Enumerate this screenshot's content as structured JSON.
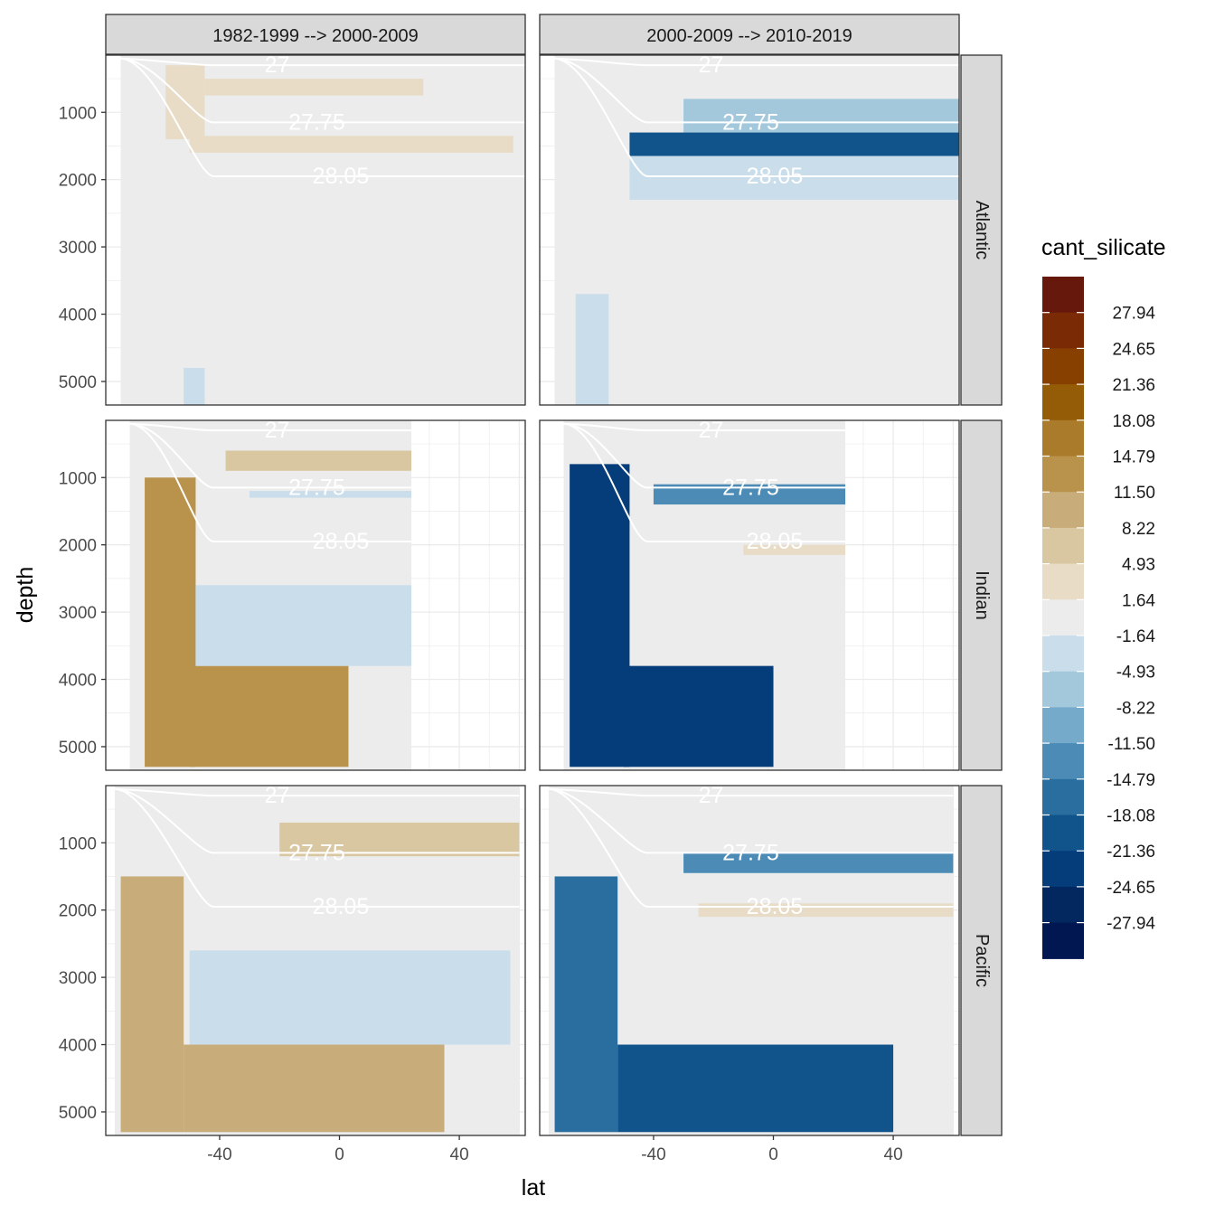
{
  "chart_data": {
    "type": "heatmap",
    "subtype": "filled contour section, faceted",
    "xlabel": "lat",
    "ylabel": "depth",
    "x_ticks": [
      -40,
      0,
      40
    ],
    "y_ticks": [
      1000,
      2000,
      3000,
      4000,
      5000
    ],
    "xlim": [
      -78,
      62
    ],
    "ylim": [
      5350,
      150
    ],
    "y_reversed": true,
    "columns": [
      "1982-1999 --> 2000-2009",
      "2000-2009 --> 2010-2019"
    ],
    "rows": [
      "Atlantic",
      "Indian",
      "Pacific"
    ],
    "basin_extent": {
      "Atlantic": [
        -73,
        62
      ],
      "Indian": [
        -70,
        24
      ],
      "Pacific": [
        -75,
        60
      ]
    },
    "legend": {
      "title": "cant_silicate",
      "breaks": [
        "27.94",
        "24.65",
        "21.36",
        "18.08",
        "14.79",
        "11.50",
        "8.22",
        "4.93",
        "1.64",
        "-1.64",
        "-4.93",
        "-8.22",
        "-11.50",
        "-14.79",
        "-18.08",
        "-21.36",
        "-24.65",
        "-27.94"
      ],
      "colors": [
        "#67180c",
        "#7a2b05",
        "#884000",
        "#955c07",
        "#a97b2a",
        "#b9924c",
        "#c8ac79",
        "#d9c7a1",
        "#e8dcc7",
        "#ebeceb",
        "#c9ddeb",
        "#a3c8dc",
        "#76aacb",
        "#4b8bb6",
        "#2a6ea0",
        "#10548b",
        "#053c7a",
        "#03275f",
        "#001752"
      ]
    },
    "isopycnals": {
      "values": [
        "27",
        "27.75",
        "28.05"
      ],
      "approx_plateau_depth": [
        300,
        1150,
        1950
      ],
      "color": "#ffffff"
    },
    "panels": [
      {
        "column": "1982-1999 --> 2000-2009",
        "row": "Atlantic",
        "bands": [
          {
            "lat": [
              -45,
              28
            ],
            "depth": [
              500,
              750
            ],
            "level": 1
          },
          {
            "lat": [
              -50,
              58
            ],
            "depth": [
              1350,
              1600
            ],
            "level": 1
          },
          {
            "lat": [
              -58,
              -45
            ],
            "depth": [
              300,
              1400
            ],
            "level": 1
          },
          {
            "lat": [
              -52,
              -45
            ],
            "depth": [
              4800,
              5350
            ],
            "level": -1
          }
        ]
      },
      {
        "column": "2000-2009 --> 2010-2019",
        "row": "Atlantic",
        "bands": [
          {
            "lat": [
              -30,
              62
            ],
            "depth": [
              800,
              1300
            ],
            "level": -2
          },
          {
            "lat": [
              -48,
              62
            ],
            "depth": [
              1300,
              1650
            ],
            "level": -6
          },
          {
            "lat": [
              -48,
              62
            ],
            "depth": [
              1650,
              2300
            ],
            "level": -1
          },
          {
            "lat": [
              -66,
              -55
            ],
            "depth": [
              3700,
              5350
            ],
            "level": -1
          }
        ]
      },
      {
        "column": "1982-1999 --> 2000-2009",
        "row": "Indian",
        "bands": [
          {
            "lat": [
              -65,
              -48
            ],
            "depth": [
              1000,
              5300
            ],
            "level": 4
          },
          {
            "lat": [
              -50,
              3
            ],
            "depth": [
              3800,
              5300
            ],
            "level": 4
          },
          {
            "lat": [
              -48,
              24
            ],
            "depth": [
              2600,
              3800
            ],
            "level": -1
          },
          {
            "lat": [
              -38,
              24
            ],
            "depth": [
              600,
              900
            ],
            "level": 2
          },
          {
            "lat": [
              -30,
              24
            ],
            "depth": [
              1200,
              1300
            ],
            "level": -1
          }
        ]
      },
      {
        "column": "2000-2009 --> 2010-2019",
        "row": "Indian",
        "bands": [
          {
            "lat": [
              -68,
              -48
            ],
            "depth": [
              800,
              5300
            ],
            "level": -7
          },
          {
            "lat": [
              -50,
              0
            ],
            "depth": [
              3800,
              5300
            ],
            "level": -7
          },
          {
            "lat": [
              -40,
              24
            ],
            "depth": [
              1100,
              1400
            ],
            "level": -4
          },
          {
            "lat": [
              -10,
              24
            ],
            "depth": [
              2000,
              2150
            ],
            "level": 1
          }
        ]
      },
      {
        "column": "1982-1999 --> 2000-2009",
        "row": "Pacific",
        "bands": [
          {
            "lat": [
              -73,
              -52
            ],
            "depth": [
              1500,
              5300
            ],
            "level": 3
          },
          {
            "lat": [
              -52,
              35
            ],
            "depth": [
              4000,
              5300
            ],
            "level": 3
          },
          {
            "lat": [
              -50,
              57
            ],
            "depth": [
              2600,
              4000
            ],
            "level": -1
          },
          {
            "lat": [
              -20,
              60
            ],
            "depth": [
              700,
              1200
            ],
            "level": 2
          }
        ]
      },
      {
        "column": "2000-2009 --> 2010-2019",
        "row": "Pacific",
        "bands": [
          {
            "lat": [
              -73,
              -52
            ],
            "depth": [
              1500,
              5300
            ],
            "level": -5
          },
          {
            "lat": [
              -52,
              40
            ],
            "depth": [
              4000,
              5300
            ],
            "level": -6
          },
          {
            "lat": [
              -30,
              60
            ],
            "depth": [
              1150,
              1450
            ],
            "level": -4
          },
          {
            "lat": [
              -25,
              60
            ],
            "depth": [
              1900,
              2100
            ],
            "level": 1
          }
        ]
      }
    ]
  }
}
